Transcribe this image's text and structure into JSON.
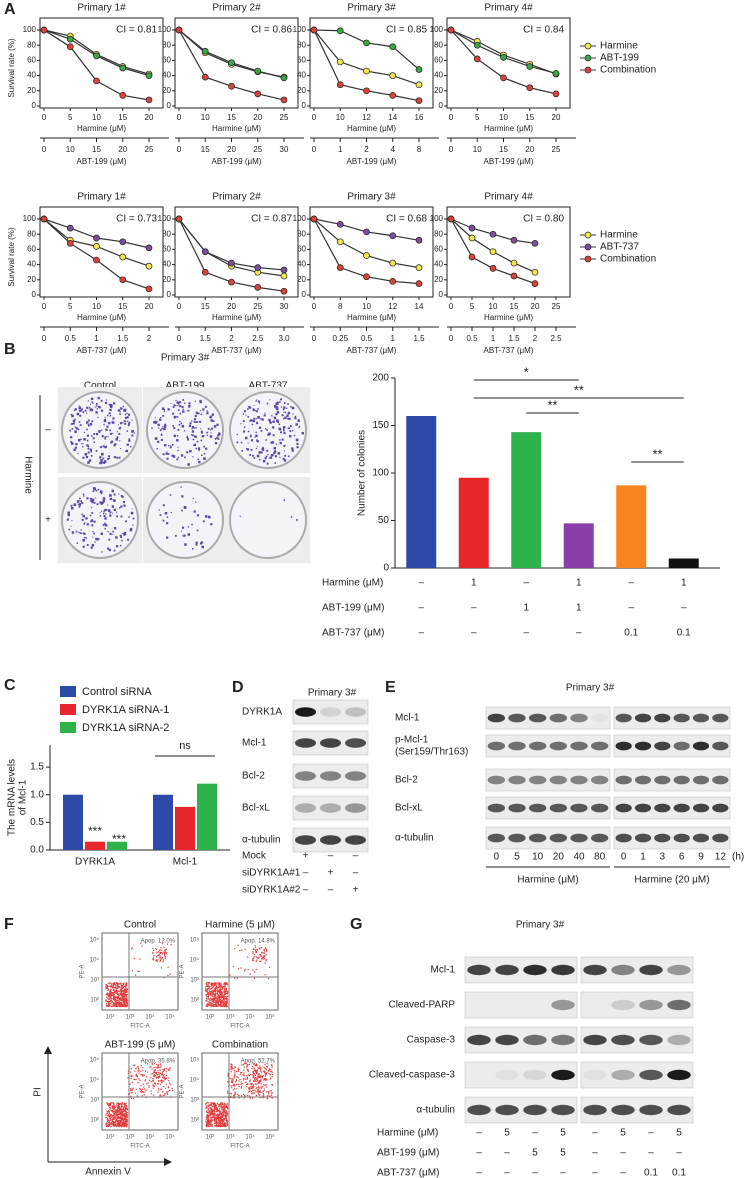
{
  "figure_labels": [
    "A",
    "B",
    "C",
    "D",
    "E",
    "F",
    "G"
  ],
  "chart_data": [
    {
      "type": "line",
      "title": "Primary 1#",
      "annotation": "CI = 0.81",
      "ylabel": "Survival rate (%)",
      "xlabel": "Harmine (μM)",
      "categories": [
        0,
        5,
        10,
        15,
        20
      ],
      "x2label": "ABT-199 (μM)",
      "x2_categories": [
        0,
        10,
        15,
        20,
        25
      ],
      "ylim": [
        0,
        100
      ],
      "yticks": [
        0,
        20,
        40,
        60,
        80,
        100
      ],
      "series": [
        {
          "color": "#f2e64c",
          "values": [
            100,
            92,
            68,
            52,
            42
          ]
        },
        {
          "color": "#3aa845",
          "values": [
            100,
            88,
            66,
            50,
            40
          ]
        },
        {
          "color": "#d9443a",
          "values": [
            100,
            78,
            33,
            14,
            8
          ]
        }
      ]
    },
    {
      "type": "line",
      "title": "Primary 2#",
      "annotation": "CI = 0.86",
      "xlabel": "Harmine (μM)",
      "categories": [
        0,
        10,
        15,
        20,
        25
      ],
      "x2label": "ABT-199 (μM)",
      "x2_categories": [
        0,
        15,
        20,
        25,
        30
      ],
      "ylim": [
        0,
        100
      ],
      "yticks": [
        0,
        20,
        40,
        60,
        80,
        100
      ],
      "series": [
        {
          "color": "#f2e64c",
          "values": [
            100,
            70,
            55,
            45,
            38
          ]
        },
        {
          "color": "#3aa845",
          "values": [
            100,
            72,
            57,
            46,
            37
          ]
        },
        {
          "color": "#d9443a",
          "values": [
            100,
            38,
            26,
            16,
            8
          ]
        }
      ]
    },
    {
      "type": "line",
      "title": "Primary 3#",
      "annotation": "CI = 0.85",
      "xlabel": "Harmine (μM)",
      "categories": [
        0,
        10,
        12,
        14,
        16
      ],
      "x2label": "ABT-199 (μM)",
      "x2_categories": [
        0,
        1,
        2,
        4,
        8
      ],
      "ylim": [
        0,
        100
      ],
      "yticks": [
        0,
        20,
        40,
        60,
        80,
        100
      ],
      "series": [
        {
          "color": "#f2e64c",
          "values": [
            100,
            58,
            46,
            40,
            28
          ]
        },
        {
          "color": "#3aa845",
          "values": [
            100,
            99,
            83,
            78,
            48
          ]
        },
        {
          "color": "#d9443a",
          "values": [
            100,
            28,
            20,
            14,
            7
          ]
        }
      ]
    },
    {
      "type": "line",
      "title": "Primary 4#",
      "annotation": "CI = 0.84",
      "xlabel": "Harmine (μM)",
      "categories": [
        0,
        5,
        10,
        15,
        20
      ],
      "x2label": "ABT-199 (μM)",
      "x2_categories": [
        0,
        10,
        15,
        20,
        25
      ],
      "ylim": [
        0,
        100
      ],
      "yticks": [
        0,
        20,
        40,
        60,
        80,
        100
      ],
      "legend": "right",
      "series": [
        {
          "name": "Harmine",
          "color": "#f2e64c",
          "values": [
            100,
            85,
            67,
            55,
            42
          ]
        },
        {
          "name": "ABT-199",
          "color": "#3aa845",
          "values": [
            100,
            80,
            64,
            52,
            43
          ]
        },
        {
          "name": "Combination",
          "color": "#d9443a",
          "values": [
            100,
            62,
            37,
            24,
            16
          ]
        }
      ]
    },
    {
      "type": "line",
      "title": "Primary 1#",
      "annotation": "CI = 0.73",
      "ylabel": "Survival rate (%)",
      "xlabel": "Harmine (μM)",
      "categories": [
        0,
        5,
        10,
        15,
        20
      ],
      "x2label": "ABT-737 (μM)",
      "x2_categories": [
        0,
        0.5,
        1,
        1.5,
        2
      ],
      "ylim": [
        0,
        100
      ],
      "yticks": [
        0,
        20,
        40,
        60,
        80,
        100
      ],
      "series": [
        {
          "color": "#f2e64c",
          "values": [
            100,
            72,
            64,
            50,
            38
          ]
        },
        {
          "color": "#7b4f9d",
          "values": [
            100,
            88,
            75,
            70,
            62
          ]
        },
        {
          "color": "#d9443a",
          "values": [
            100,
            68,
            46,
            20,
            8
          ]
        }
      ]
    },
    {
      "type": "line",
      "title": "Primary 2#",
      "annotation": "CI = 0.87",
      "xlabel": "Harmine (μM)",
      "categories": [
        0,
        15,
        20,
        25,
        30
      ],
      "x2label": "ABT-737 (μM)",
      "x2_categories": [
        0,
        1.5,
        2,
        2.5,
        "3.0"
      ],
      "ylim": [
        0,
        100
      ],
      "yticks": [
        0,
        20,
        40,
        60,
        80,
        100
      ],
      "series": [
        {
          "color": "#f2e64c",
          "values": [
            100,
            57,
            38,
            30,
            25
          ]
        },
        {
          "color": "#7b4f9d",
          "values": [
            100,
            57,
            42,
            36,
            33
          ]
        },
        {
          "color": "#d9443a",
          "values": [
            100,
            30,
            17,
            10,
            5
          ]
        }
      ]
    },
    {
      "type": "line",
      "title": "Primary 3#",
      "annotation": "CI = 0.68",
      "xlabel": "Harmine (μM)",
      "categories": [
        0,
        8,
        10,
        12,
        14
      ],
      "x2label": "ABT-737 (μM)",
      "x2_categories": [
        0,
        0.25,
        0.5,
        1,
        1.5
      ],
      "ylim": [
        0,
        100
      ],
      "yticks": [
        0,
        20,
        40,
        60,
        80,
        100
      ],
      "series": [
        {
          "color": "#f2e64c",
          "values": [
            100,
            70,
            52,
            42,
            36
          ]
        },
        {
          "color": "#7b4f9d",
          "values": [
            100,
            93,
            83,
            78,
            72
          ]
        },
        {
          "color": "#d9443a",
          "values": [
            100,
            36,
            24,
            18,
            15
          ]
        }
      ]
    },
    {
      "type": "line",
      "title": "Primary 4#",
      "annotation": "CI = 0.80",
      "xlabel": "Harmine (μM)",
      "categories": [
        0,
        5,
        10,
        15,
        20,
        25
      ],
      "x2label": "ABT-737 (μM)",
      "x2_categories": [
        0,
        0.5,
        1,
        1.5,
        2,
        2.5
      ],
      "ylim": [
        0,
        100
      ],
      "yticks": [
        0,
        20,
        40,
        60,
        80,
        100
      ],
      "legend": "right",
      "series": [
        {
          "name": "Harmine",
          "color": "#f2e64c",
          "values": [
            100,
            75,
            57,
            42,
            30,
            null
          ]
        },
        {
          "name": "ABT-737",
          "color": "#7b4f9d",
          "values": [
            100,
            88,
            80,
            72,
            68,
            null
          ]
        },
        {
          "name": "Combination",
          "color": "#d9443a",
          "values": [
            100,
            50,
            35,
            25,
            15,
            null
          ]
        }
      ]
    },
    {
      "type": "bar",
      "ylabel": "Number of colonies",
      "categories": [
        null,
        null,
        null,
        null,
        null,
        null
      ],
      "values": [
        160,
        95,
        143,
        47,
        87,
        10
      ],
      "colors": [
        "#2e4aa8",
        "#e8262b",
        "#2eb34a",
        "#8a3fa8",
        "#f7841e",
        "#111111"
      ],
      "ylim": [
        0,
        200
      ],
      "yticks": [
        0,
        50,
        100,
        150,
        200
      ],
      "annotations": [
        "*",
        "**",
        "**",
        "**"
      ],
      "condition_rows": [
        {
          "label": "Harmine (μM)",
          "cells": [
            "–",
            "1",
            "–",
            "1",
            "–",
            "1"
          ]
        },
        {
          "label": "ABT-199 (μM)",
          "cells": [
            "–",
            "–",
            "1",
            "1",
            "–",
            "–"
          ]
        },
        {
          "label": "ABT-737 (μM)",
          "cells": [
            "–",
            "–",
            "–",
            "–",
            "0.1",
            "0.1"
          ]
        }
      ]
    },
    {
      "type": "grouped_bar",
      "ylabel": [
        "The mRNA levels",
        "of Mcl-1"
      ],
      "categories": [
        "DYRK1A",
        "Mcl-1"
      ],
      "ylim": [
        0,
        1.9
      ],
      "yticks": [
        {
          "value": 0,
          "label": "0.0"
        },
        {
          "value": 0.5,
          "label": "0.5"
        },
        {
          "value": 1,
          "label": "1.0"
        },
        {
          "value": 1.5,
          "label": "1.5"
        }
      ],
      "annotations": [
        "***",
        "***",
        "ns"
      ],
      "series": [
        {
          "name": "Control siRNA",
          "color": "#2e4aa8",
          "values": [
            1.0,
            1.0
          ]
        },
        {
          "name": "DYRK1A siRNA-1",
          "color": "#e8262b",
          "values": [
            0.15,
            0.78
          ]
        },
        {
          "name": "DYRK1A siRNA-2",
          "color": "#2eb34a",
          "values": [
            0.15,
            1.2
          ]
        }
      ]
    }
  ],
  "panel_b_images": {
    "title": "Primary 3#",
    "columns": [
      "Control",
      "ABT-199",
      "ABT-737"
    ],
    "row_axis": "Harmine",
    "rows": [
      "–",
      "+"
    ]
  },
  "blot_d": {
    "title": "Primary 3#",
    "proteins": [
      "DYRK1A",
      "Mcl-1",
      "Bcl-2",
      "Bcl-xL",
      "α-tubulin"
    ],
    "conditions": [
      {
        "label": "Mock",
        "marks": [
          "+",
          "–",
          "–"
        ]
      },
      {
        "label": "siDYRK1A#1",
        "marks": [
          "–",
          "+",
          "–"
        ]
      },
      {
        "label": "siDYRK1A#2",
        "marks": [
          "–",
          "–",
          "+"
        ]
      }
    ]
  },
  "blot_e": {
    "title": "Primary 3#",
    "proteins": [
      [
        "Mcl-1"
      ],
      [
        "p-Mcl-1",
        "(Ser159/Thr163)"
      ],
      [
        "Bcl-2"
      ],
      [
        "Bcl-xL"
      ],
      [
        "α-tubulin"
      ]
    ],
    "dose_lanes": [
      0,
      5,
      10,
      20,
      40,
      80
    ],
    "dose_label": "Harmine (μM)",
    "time_lanes": [
      0,
      1,
      3,
      6,
      9,
      12
    ],
    "time_unit": "(h)",
    "time_label": "Harmine (20 μM)"
  },
  "flow_f": {
    "plots": [
      {
        "title": "Control",
        "apoptosis": "Apop. 12.0%"
      },
      {
        "title": "Harmine (5 μM)",
        "apoptosis": "Apop. 14.8%"
      },
      {
        "title": "ABT-199 (5 μM)",
        "apoptosis": "Apop. 35.8%"
      },
      {
        "title": "Combination",
        "apoptosis": "Apop. 52.7%"
      }
    ],
    "y_axis": "PE-A",
    "x_axis": "FITC-A",
    "ticks": [
      "10²",
      "10³",
      "10⁴",
      "10⁵"
    ],
    "ylabel": "PI",
    "xlabel": "Annexin V"
  },
  "blot_g": {
    "title": "Primary 3#",
    "proteins": [
      "Mcl-1",
      "Cleaved-PARP",
      "Caspase-3",
      "Cleaved-caspase-3",
      "α-tubulin"
    ],
    "conditions": [
      {
        "label": "Harmine (μM)",
        "marks": [
          "–",
          "5",
          "–",
          "5",
          "–",
          "5",
          "–",
          "5"
        ]
      },
      {
        "label": "ABT-199 (μM)",
        "marks": [
          "–",
          "–",
          "5",
          "5",
          "–",
          "–",
          "–",
          "–"
        ]
      },
      {
        "label": "ABT-737 (μM)",
        "marks": [
          "–",
          "–",
          "–",
          "–",
          "–",
          "–",
          "0.1",
          "0.1"
        ]
      }
    ]
  }
}
